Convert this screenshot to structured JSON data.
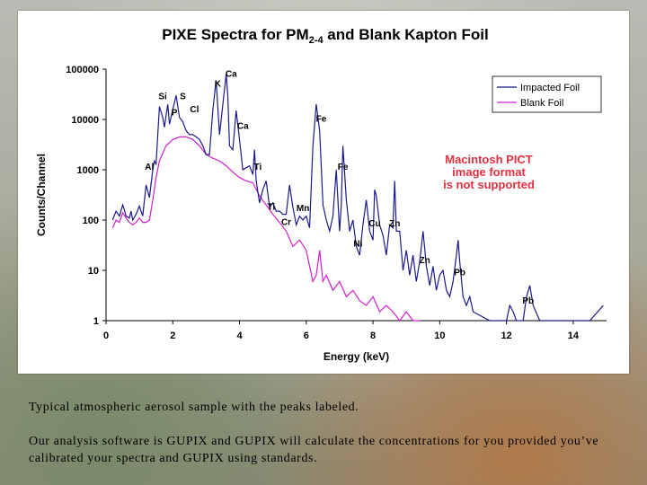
{
  "captions": {
    "line1": "Typical atmospheric aerosol sample with the peaks labeled.",
    "line2": "Our analysis software is GUPIX and GUPIX will calculate the concentrations for you provided you’ve calibrated your spectra and GUPIX using standards."
  },
  "colors": {
    "impacted": "#1a1a8c",
    "blank": "#d020c8",
    "unsupported_text": "#e03040"
  },
  "unsupported_notice": [
    "Macintosh PICT",
    "image format",
    "is not supported"
  ],
  "chart_data": {
    "type": "line",
    "title": "PIXE Spectra for PM",
    "title_subscript": "2-4",
    "title_suffix": " and Blank Kapton Foil",
    "xlabel": "Energy (keV)",
    "ylabel": "Counts/Channel",
    "xlim": [
      0,
      15
    ],
    "ylim": [
      1,
      100000
    ],
    "yscale": "log",
    "x_ticks": [
      0,
      2,
      4,
      6,
      8,
      10,
      12,
      14
    ],
    "y_ticks": [
      1,
      10,
      100,
      1000,
      10000,
      100000
    ],
    "y_tick_labels": [
      "1",
      "10",
      "100",
      "1000",
      "10000",
      "100000"
    ],
    "grid": false,
    "legend": "top-right",
    "series": [
      {
        "name": "Impacted Foil",
        "color": "#1a1a8c",
        "x": [
          0.2,
          0.3,
          0.4,
          0.5,
          0.55,
          0.6,
          0.7,
          0.75,
          0.8,
          0.9,
          1.0,
          1.1,
          1.2,
          1.3,
          1.4,
          1.45,
          1.5,
          1.6,
          1.7,
          1.75,
          1.8,
          1.85,
          1.9,
          2.0,
          2.1,
          2.2,
          2.3,
          2.4,
          2.5,
          2.6,
          2.7,
          2.8,
          2.9,
          3.0,
          3.1,
          3.2,
          3.3,
          3.4,
          3.5,
          3.6,
          3.65,
          3.7,
          3.8,
          3.9,
          4.0,
          4.1,
          4.2,
          4.3,
          4.4,
          4.45,
          4.5,
          4.6,
          4.7,
          4.8,
          4.9,
          5.0,
          5.1,
          5.2,
          5.3,
          5.4,
          5.5,
          5.6,
          5.7,
          5.8,
          5.9,
          6.0,
          6.1,
          6.2,
          6.3,
          6.4,
          6.5,
          6.6,
          6.7,
          6.8,
          6.9,
          7.0,
          7.05,
          7.1,
          7.2,
          7.3,
          7.4,
          7.5,
          7.6,
          7.7,
          7.8,
          7.9,
          8.0,
          8.05,
          8.1,
          8.2,
          8.3,
          8.4,
          8.5,
          8.6,
          8.65,
          8.7,
          8.8,
          8.9,
          9.0,
          9.1,
          9.2,
          9.3,
          9.4,
          9.5,
          9.6,
          9.7,
          9.8,
          9.9,
          10.0,
          10.1,
          10.2,
          10.3,
          10.4,
          10.5,
          10.55,
          10.6,
          10.7,
          10.8,
          10.9,
          11.0,
          11.5,
          12.0,
          12.1,
          12.2,
          12.3,
          12.5,
          12.6,
          12.7,
          12.8,
          13.0,
          13.5,
          14.0,
          14.5,
          14.9
        ],
        "y": [
          100,
          150,
          120,
          200,
          160,
          120,
          110,
          150,
          100,
          130,
          190,
          120,
          500,
          280,
          1000,
          1500,
          1300,
          18000,
          11000,
          7000,
          12000,
          20000,
          8000,
          16000,
          30000,
          11000,
          9000,
          6000,
          5000,
          5000,
          4500,
          4000,
          3000,
          2000,
          2000,
          15000,
          60000,
          5000,
          20000,
          80000,
          30000,
          3000,
          2500,
          15000,
          4000,
          1000,
          1100,
          1200,
          800,
          2500,
          600,
          220,
          400,
          600,
          180,
          220,
          150,
          150,
          130,
          130,
          500,
          180,
          80,
          120,
          100,
          120,
          70,
          3000,
          20000,
          6000,
          200,
          100,
          60,
          120,
          1000,
          60,
          200,
          3000,
          250,
          60,
          100,
          30,
          20,
          80,
          250,
          60,
          40,
          400,
          300,
          80,
          50,
          20,
          80,
          70,
          600,
          60,
          60,
          10,
          25,
          8,
          20,
          6,
          15,
          60,
          12,
          5,
          12,
          4,
          8,
          10,
          4,
          3,
          6,
          20,
          40,
          15,
          3,
          2,
          3,
          1.5,
          1,
          1,
          2,
          1.5,
          1,
          1,
          3,
          5,
          2,
          1,
          1,
          1,
          1,
          2
        ],
        "labels": [
          {
            "text": "Al",
            "x": 1.3,
            "y": 1000
          },
          {
            "text": "Si",
            "x": 1.7,
            "y": 25000
          },
          {
            "text": "P",
            "x": 2.05,
            "y": 12000
          },
          {
            "text": "S",
            "x": 2.3,
            "y": 25000
          },
          {
            "text": "Cl",
            "x": 2.65,
            "y": 14000
          },
          {
            "text": "K",
            "x": 3.35,
            "y": 45000
          },
          {
            "text": "Ca",
            "x": 3.75,
            "y": 70000
          },
          {
            "text": "Ca",
            "x": 4.1,
            "y": 6500
          },
          {
            "text": "Ti",
            "x": 4.55,
            "y": 1000
          },
          {
            "text": "Ti",
            "x": 4.95,
            "y": 160
          },
          {
            "text": "Cr",
            "x": 5.4,
            "y": 80
          },
          {
            "text": "Mn",
            "x": 5.9,
            "y": 150
          },
          {
            "text": "Fe",
            "x": 6.45,
            "y": 9000
          },
          {
            "text": "Fe",
            "x": 7.1,
            "y": 1000
          },
          {
            "text": "Ni",
            "x": 7.55,
            "y": 30
          },
          {
            "text": "Cu",
            "x": 8.05,
            "y": 75
          },
          {
            "text": "Zn",
            "x": 8.65,
            "y": 75
          },
          {
            "text": "Zn",
            "x": 9.55,
            "y": 14
          },
          {
            "text": "Pb",
            "x": 10.6,
            "y": 8
          },
          {
            "text": "Pb",
            "x": 12.65,
            "y": 2.2
          }
        ]
      },
      {
        "name": "Blank Foil",
        "color": "#d020c8",
        "x": [
          0.2,
          0.3,
          0.4,
          0.5,
          0.6,
          0.7,
          0.8,
          0.9,
          1.0,
          1.1,
          1.2,
          1.3,
          1.4,
          1.5,
          1.6,
          1.8,
          2.0,
          2.2,
          2.4,
          2.6,
          2.8,
          3.0,
          3.2,
          3.4,
          3.6,
          3.8,
          4.0,
          4.2,
          4.4,
          4.6,
          4.8,
          5.0,
          5.2,
          5.4,
          5.6,
          5.8,
          6.0,
          6.1,
          6.2,
          6.3,
          6.4,
          6.5,
          6.6,
          6.8,
          7.0,
          7.2,
          7.4,
          7.6,
          7.8,
          8.0,
          8.2,
          8.4,
          8.6,
          8.8,
          9.0,
          9.2,
          9.4
        ],
        "y": [
          70,
          100,
          90,
          140,
          110,
          90,
          80,
          90,
          110,
          90,
          90,
          100,
          250,
          700,
          1500,
          3000,
          4000,
          4500,
          4500,
          4000,
          3000,
          2000,
          1700,
          1500,
          1200,
          900,
          700,
          600,
          550,
          300,
          200,
          130,
          90,
          60,
          30,
          40,
          25,
          12,
          6,
          8,
          25,
          6,
          8,
          4,
          6,
          3,
          4,
          2.5,
          2,
          3,
          1.5,
          2,
          1.5,
          1,
          1.5,
          1,
          1
        ]
      }
    ]
  }
}
